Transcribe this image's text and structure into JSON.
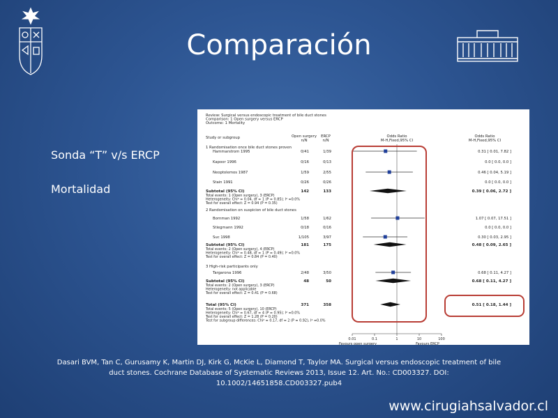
{
  "slide": {
    "title": "Comparación",
    "bullets": [
      "Sonda “T” v/s ERCP",
      "Mortalidad"
    ],
    "citation_lines": [
      "Dasari BVM, Tan C, Gurusamy K, Martin DJ, Kirk G, McKie L, Diamond T, Taylor MA. Surgical versus endoscopic treatment of bile",
      "duct stones. Cochrane Database of Systematic Reviews 2013, Issue 12. Art. No.: CD003327. DOI:",
      "10.1002/14651858.CD003327.pub4"
    ],
    "website": "www.cirugiahsalvador.cl",
    "highlight_color": "#b83c34",
    "marker_color": "#1f3f9a"
  },
  "forest": {
    "header_lines": [
      "Review: Surgical versus endoscopic treatment of bile duct stones",
      "Comparison: 1 Open surgery versus ERCP",
      "Outcome: 1 Mortality"
    ],
    "col_study": "Study or subgroup",
    "col_open": "Open surgery",
    "col_ercp": "ERCP",
    "col_nn": "n/N",
    "col_or": "Odds Ratio",
    "col_method": "M-H,Fixed,95% CI",
    "axis_ticks": [
      "0.01",
      "0.1",
      "1",
      "10",
      "100"
    ],
    "axis_left": "Favours open surgery",
    "axis_right": "Favours ERCP",
    "groups": [
      {
        "title": "1 Randomisation once bile duct stones proven",
        "studies": [
          {
            "name": "Hammarstrom 1995",
            "open": "0/41",
            "ercp": "1/39",
            "or_text": "0.31 [ 0.01, 7.82 ]",
            "or": 0.31,
            "lo": 0.01,
            "hi": 7.82
          },
          {
            "name": "Kapoor 1996",
            "open": "0/16",
            "ercp": "0/13",
            "or_text": "0.0 [ 0.0, 0.0 ]"
          },
          {
            "name": "Neoptolemos 1987",
            "open": "1/59",
            "ercp": "2/55",
            "or_text": "0.46 [ 0.04, 5.19 ]",
            "or": 0.46,
            "lo": 0.04,
            "hi": 5.19
          },
          {
            "name": "Stain 1991",
            "open": "0/26",
            "ercp": "0/26",
            "or_text": "0.0 [ 0.0, 0.0 ]"
          }
        ],
        "subtotal": {
          "label": "Subtotal (95% CI)",
          "open": "142",
          "ercp": "133",
          "or_text": "0.39 [ 0.06, 2.72 ]",
          "or": 0.39,
          "lo": 0.06,
          "hi": 2.72
        },
        "notes": [
          "Total events: 1 (Open surgery), 3 (ERCP)",
          "Heterogeneity: Chi² = 0.04, df = 1 (P = 0.85); I² =0.0%",
          "Test for overall effect: Z = 0.94 (P = 0.35)"
        ]
      },
      {
        "title": "2 Randomisation on suspicion of bile duct stones",
        "studies": [
          {
            "name": "Bornman 1992",
            "open": "1/58",
            "ercp": "1/62",
            "or_text": "1.07 [ 0.07, 17.51 ]",
            "or": 1.07,
            "lo": 0.07,
            "hi": 17.51
          },
          {
            "name": "Stiegmann 1992",
            "open": "0/18",
            "ercp": "0/16",
            "or_text": "0.0 [ 0.0, 0.0 ]"
          },
          {
            "name": "Suc 1998",
            "open": "1/105",
            "ercp": "3/97",
            "or_text": "0.30 [ 0.03, 2.95 ]",
            "or": 0.3,
            "lo": 0.03,
            "hi": 2.95
          }
        ],
        "subtotal": {
          "label": "Subtotal (95% CI)",
          "open": "181",
          "ercp": "175",
          "or_text": "0.48 [ 0.09, 2.65 ]",
          "or": 0.48,
          "lo": 0.09,
          "hi": 2.65
        },
        "notes": [
          "Total events: 2 (Open surgery), 4 (ERCP)",
          "Heterogeneity: Chi² = 0.48, df = 1 (P = 0.49); I² =0.0%",
          "Test for overall effect: Z = 0.84 (P = 0.40)"
        ]
      },
      {
        "title": "3 High-risk participants only",
        "studies": [
          {
            "name": "Targarona 1996",
            "open": "2/48",
            "ercp": "3/50",
            "or_text": "0.68 [ 0.11, 4.27 ]",
            "or": 0.68,
            "lo": 0.11,
            "hi": 4.27
          }
        ],
        "subtotal": {
          "label": "Subtotal (95% CI)",
          "open": "48",
          "ercp": "50",
          "or_text": "0.68 [ 0.11, 4.27 ]",
          "or": 0.68,
          "lo": 0.11,
          "hi": 4.27
        },
        "notes": [
          "Total events: 2 (Open surgery), 3 (ERCP)",
          "Heterogeneity: not applicable",
          "Test for overall effect: Z = 0.41 (P = 0.68)"
        ]
      }
    ],
    "total": {
      "label": "Total (95% CI)",
      "open": "371",
      "ercp": "358",
      "or_text": "0.51 [ 0.18, 1.44 ]",
      "or": 0.51,
      "lo": 0.18,
      "hi": 1.44
    },
    "total_notes": [
      "Total events: 5 (Open surgery), 10 (ERCP)",
      "Heterogeneity: Chi² = 0.67, df = 4 (P = 0.95); I² =0.0%",
      "Test for overall effect: Z = 1.28 (P = 0.20)",
      "Test for subgroup differences: Chi² = 0.17, df = 2 (P = 0.92), I² =0.0%"
    ]
  }
}
